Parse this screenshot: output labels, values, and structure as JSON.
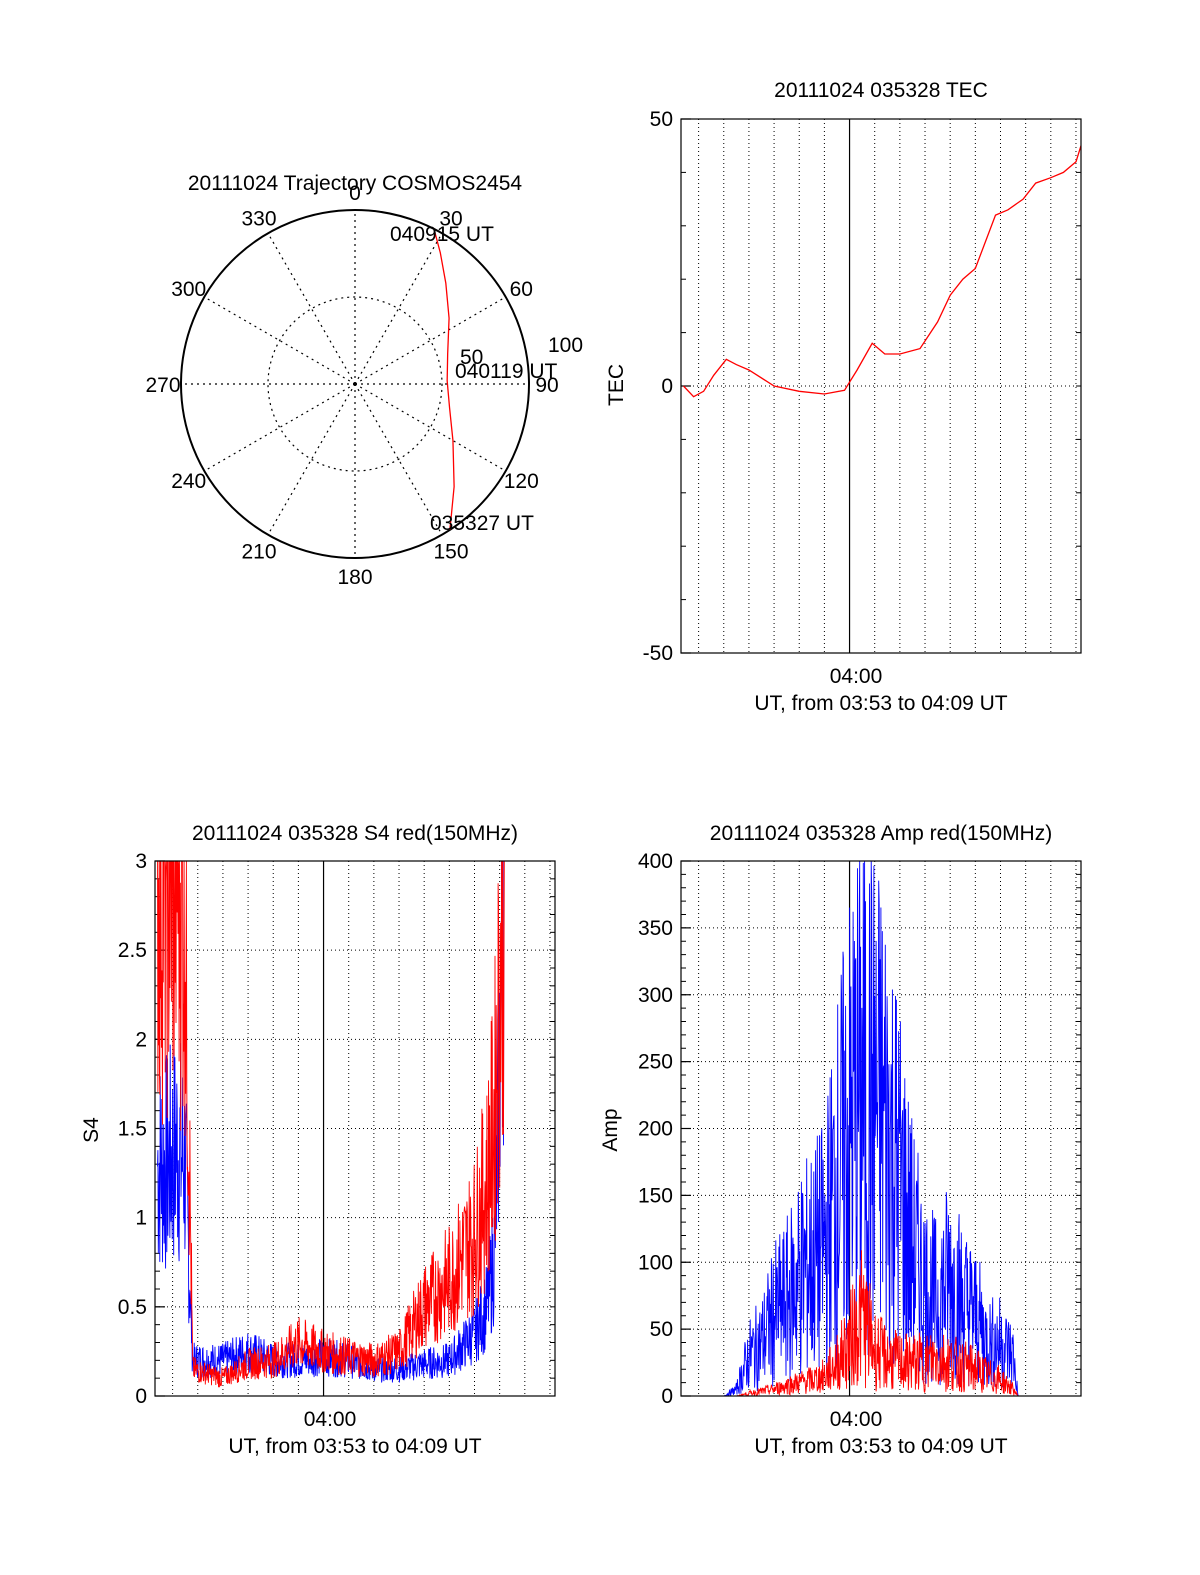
{
  "colors": {
    "red": "#ff0000",
    "blue": "#0000ff",
    "axis": "#000000",
    "grid": "#000000"
  },
  "chart_data": [
    {
      "id": "polar",
      "type": "polar-trajectory",
      "title": "20111024 Trajectory COSMOS2454",
      "angle_labels": [
        "0",
        "30",
        "60",
        "90",
        "120",
        "150",
        "180",
        "210",
        "240",
        "270",
        "300",
        "330"
      ],
      "radius_labels": [
        "50",
        "100"
      ],
      "radius_max": 100,
      "annotations": {
        "end_time": "040915 UT",
        "mid_time": "040119 UT",
        "start_time": "035327 UT"
      },
      "trajectory": [
        {
          "az": 27,
          "r": 100
        },
        {
          "az": 33,
          "r": 90
        },
        {
          "az": 42,
          "r": 78
        },
        {
          "az": 55,
          "r": 66
        },
        {
          "az": 72,
          "r": 56
        },
        {
          "az": 88,
          "r": 53
        },
        {
          "az": 104,
          "r": 56
        },
        {
          "az": 120,
          "r": 65
        },
        {
          "az": 136,
          "r": 82
        },
        {
          "az": 145,
          "r": 96
        },
        {
          "az": 147,
          "r": 100
        }
      ]
    },
    {
      "id": "tec",
      "type": "line",
      "title": "20111024 035328 TEC",
      "ylabel": "TEC",
      "xlabel": "UT, from 03:53 to 04:09 UT",
      "x_tick_label": "04:00",
      "ylim": [
        -50,
        50
      ],
      "yticks": [
        "-50",
        "0",
        "50"
      ],
      "xlim_min": [
        53.3,
        69.2
      ],
      "series": [
        {
          "color": "red",
          "x": [
            53.4,
            53.8,
            54.2,
            54.6,
            55.1,
            55.5,
            56.0,
            57.0,
            58.0,
            59.0,
            59.8,
            60.3,
            60.9,
            61.4,
            62.0,
            62.8,
            63.5,
            64.0,
            64.5,
            65.0,
            65.8,
            66.3,
            66.9,
            67.4,
            68.0,
            68.5,
            69.0,
            69.2
          ],
          "y": [
            0,
            -2,
            -1,
            2,
            5,
            4,
            3,
            0,
            -1,
            -1.5,
            -0.8,
            3,
            8,
            6,
            6,
            7,
            12,
            17,
            20,
            22,
            32,
            33,
            35,
            38,
            39,
            40,
            42,
            45
          ]
        }
      ]
    },
    {
      "id": "s4",
      "type": "line",
      "title": "20111024 035328 S4 red(150MHz)",
      "ylabel": "S4",
      "xlabel": "UT, from 03:53 to 04:09 UT",
      "x_tick_label": "04:00",
      "ylim": [
        0,
        3
      ],
      "yticks": [
        "0",
        "0.5",
        "1",
        "1.5",
        "2",
        "2.5",
        "3"
      ],
      "xlim_min": [
        53.3,
        69.2
      ],
      "series": [
        {
          "color": "blue",
          "x": [
            53.4,
            53.8,
            54.2,
            54.5,
            54.8,
            55.5,
            56.0,
            57.0,
            58.0,
            59.0,
            60.0,
            61.0,
            62.0,
            63.0,
            64.0,
            65.0,
            66.0,
            66.5,
            66.8,
            67.2
          ],
          "y": [
            1.3,
            1.3,
            1.4,
            1.3,
            0.2,
            0.2,
            0.2,
            0.25,
            0.2,
            0.2,
            0.22,
            0.2,
            0.15,
            0.15,
            0.18,
            0.2,
            0.35,
            0.5,
            0.8,
            3.0
          ]
        },
        {
          "color": "red",
          "x": [
            53.4,
            53.8,
            54.2,
            54.5,
            54.8,
            55.5,
            56.0,
            57.0,
            58.0,
            59.0,
            60.0,
            61.0,
            62.0,
            63.0,
            64.0,
            65.0,
            66.0,
            66.5,
            66.8,
            67.2
          ],
          "y": [
            3.0,
            3.0,
            3.0,
            2.8,
            0.15,
            0.12,
            0.1,
            0.18,
            0.2,
            0.3,
            0.25,
            0.22,
            0.2,
            0.25,
            0.5,
            0.65,
            0.9,
            1.2,
            1.6,
            3.0
          ]
        }
      ]
    },
    {
      "id": "amp",
      "type": "line",
      "title": "20111024 035328 Amp red(150MHz)",
      "ylabel": "Amp",
      "xlabel": "UT, from 03:53 to 04:09 UT",
      "x_tick_label": "04:00",
      "ylim": [
        0,
        400
      ],
      "yticks": [
        "0",
        "50",
        "100",
        "150",
        "200",
        "250",
        "300",
        "350",
        "400"
      ],
      "xlim_min": [
        53.3,
        69.2
      ],
      "series": [
        {
          "color": "blue",
          "x": [
            53.4,
            55.0,
            55.5,
            56.0,
            56.5,
            57.0,
            57.5,
            58.0,
            58.5,
            59.0,
            59.5,
            60.0,
            60.5,
            61.0,
            61.5,
            62.0,
            62.5,
            63.0,
            63.5,
            64.0,
            64.5,
            65.0,
            65.5,
            66.0,
            66.5,
            66.7,
            69.2
          ],
          "y": [
            0,
            0,
            5,
            30,
            40,
            60,
            70,
            90,
            100,
            110,
            160,
            200,
            230,
            220,
            200,
            160,
            110,
            80,
            70,
            90,
            70,
            60,
            40,
            40,
            30,
            0,
            0
          ]
        },
        {
          "color": "red",
          "x": [
            53.4,
            55.5,
            56.0,
            57.0,
            57.5,
            58.0,
            58.5,
            59.0,
            59.5,
            60.0,
            60.5,
            61.0,
            61.5,
            62.0,
            62.5,
            63.0,
            63.5,
            64.0,
            64.5,
            65.0,
            65.5,
            66.0,
            66.5,
            66.7,
            69.2
          ],
          "y": [
            0,
            0,
            2,
            5,
            8,
            10,
            12,
            15,
            25,
            40,
            60,
            35,
            28,
            25,
            25,
            25,
            28,
            25,
            22,
            20,
            15,
            12,
            5,
            0,
            0
          ]
        }
      ]
    }
  ]
}
